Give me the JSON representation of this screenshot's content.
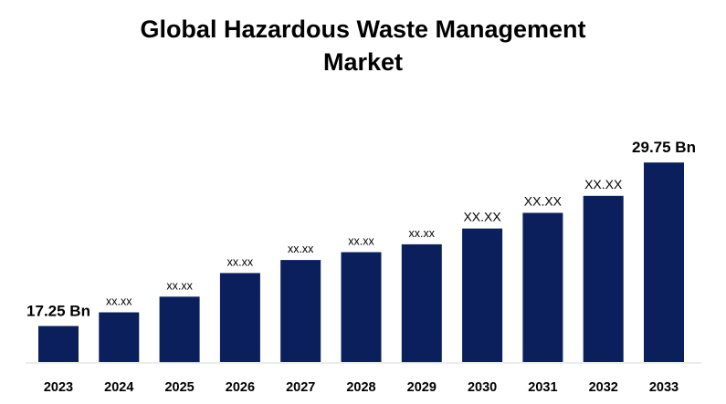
{
  "chart_data": {
    "type": "bar",
    "title_lines": [
      "Global Hazardous Waste Management",
      "Market"
    ],
    "categories": [
      "2023",
      "2024",
      "2025",
      "2026",
      "2027",
      "2028",
      "2029",
      "2030",
      "2031",
      "2032",
      "2033"
    ],
    "values": [
      17.25,
      18.3,
      19.5,
      21.3,
      22.3,
      22.9,
      23.5,
      24.7,
      25.9,
      27.2,
      29.75
    ],
    "data_labels": [
      "17.25 Bn",
      "xx.xx",
      "xx.xx",
      "xx.xx",
      "xx.xx",
      "xx.xx",
      "xx.xx",
      "XX.XX",
      "XX.XX",
      "XX.XX",
      "29.75 Bn"
    ],
    "xlabel": "",
    "ylabel": "",
    "ylim": [
      14.5,
      31
    ],
    "grid": false,
    "legend": "none",
    "bar_color": "#0a1f5c"
  }
}
